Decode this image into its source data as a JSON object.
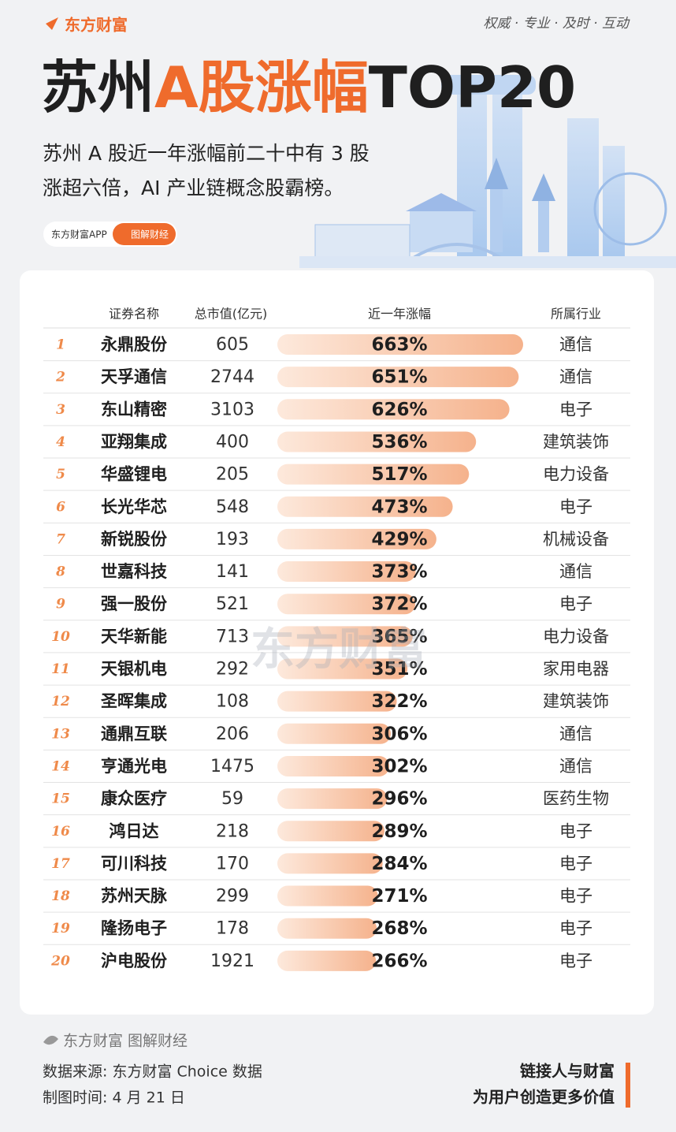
{
  "header": {
    "brand": "东方财富",
    "slogan": "权威 · 专业 · 及时 · 互动",
    "title_parts": [
      "苏州",
      "A股涨幅",
      "TOP20"
    ],
    "subtitle_lines": [
      "苏州 A 股近一年涨幅前二十中有 3 股",
      "涨超六倍，AI 产业链概念股霸榜。"
    ],
    "badge": "东方财富APP",
    "badge_button": "图解财经"
  },
  "table": {
    "columns": [
      "证券名称",
      "总市值(亿元)",
      "近一年涨幅",
      "所属行业"
    ],
    "rows": [
      {
        "rank": 1,
        "name": "永鼎股份",
        "market_cap": 605,
        "gain": 663,
        "gain_label": "663%",
        "industry": "通信"
      },
      {
        "rank": 2,
        "name": "天孚通信",
        "market_cap": 2744,
        "gain": 651,
        "gain_label": "651%",
        "industry": "通信"
      },
      {
        "rank": 3,
        "name": "东山精密",
        "market_cap": 3103,
        "gain": 626,
        "gain_label": "626%",
        "industry": "电子"
      },
      {
        "rank": 4,
        "name": "亚翔集成",
        "market_cap": 400,
        "gain": 536,
        "gain_label": "536%",
        "industry": "建筑装饰"
      },
      {
        "rank": 5,
        "name": "华盛锂电",
        "market_cap": 205,
        "gain": 517,
        "gain_label": "517%",
        "industry": "电力设备"
      },
      {
        "rank": 6,
        "name": "长光华芯",
        "market_cap": 548,
        "gain": 473,
        "gain_label": "473%",
        "industry": "电子"
      },
      {
        "rank": 7,
        "name": "新锐股份",
        "market_cap": 193,
        "gain": 429,
        "gain_label": "429%",
        "industry": "机械设备"
      },
      {
        "rank": 8,
        "name": "世嘉科技",
        "market_cap": 141,
        "gain": 373,
        "gain_label": "373%",
        "industry": "通信"
      },
      {
        "rank": 9,
        "name": "强一股份",
        "market_cap": 521,
        "gain": 372,
        "gain_label": "372%",
        "industry": "电子"
      },
      {
        "rank": 10,
        "name": "天华新能",
        "market_cap": 713,
        "gain": 365,
        "gain_label": "365%",
        "industry": "电力设备"
      },
      {
        "rank": 11,
        "name": "天银机电",
        "market_cap": 292,
        "gain": 351,
        "gain_label": "351%",
        "industry": "家用电器"
      },
      {
        "rank": 12,
        "name": "圣晖集成",
        "market_cap": 108,
        "gain": 322,
        "gain_label": "322%",
        "industry": "建筑装饰"
      },
      {
        "rank": 13,
        "name": "通鼎互联",
        "market_cap": 206,
        "gain": 306,
        "gain_label": "306%",
        "industry": "通信"
      },
      {
        "rank": 14,
        "name": "亨通光电",
        "market_cap": 1475,
        "gain": 302,
        "gain_label": "302%",
        "industry": "通信"
      },
      {
        "rank": 15,
        "name": "康众医疗",
        "market_cap": 59,
        "gain": 296,
        "gain_label": "296%",
        "industry": "医药生物"
      },
      {
        "rank": 16,
        "name": "鸿日达",
        "market_cap": 218,
        "gain": 289,
        "gain_label": "289%",
        "industry": "电子"
      },
      {
        "rank": 17,
        "name": "可川科技",
        "market_cap": 170,
        "gain": 284,
        "gain_label": "284%",
        "industry": "电子"
      },
      {
        "rank": 18,
        "name": "苏州天脉",
        "market_cap": 299,
        "gain": 271,
        "gain_label": "271%",
        "industry": "电子"
      },
      {
        "rank": 19,
        "name": "隆扬电子",
        "market_cap": 178,
        "gain": 268,
        "gain_label": "268%",
        "industry": "电子"
      },
      {
        "rank": 20,
        "name": "沪电股份",
        "market_cap": 1921,
        "gain": 266,
        "gain_label": "266%",
        "industry": "电子"
      }
    ]
  },
  "watermark": "东方财富",
  "footer": {
    "brand_line": "东方财富 图解财经",
    "source": "数据来源: 东方财富 Choice 数据",
    "date": "制图时间: 4 月 21 日",
    "motto_lines": [
      "链接人与财富",
      "为用户创造更多价值"
    ]
  }
}
